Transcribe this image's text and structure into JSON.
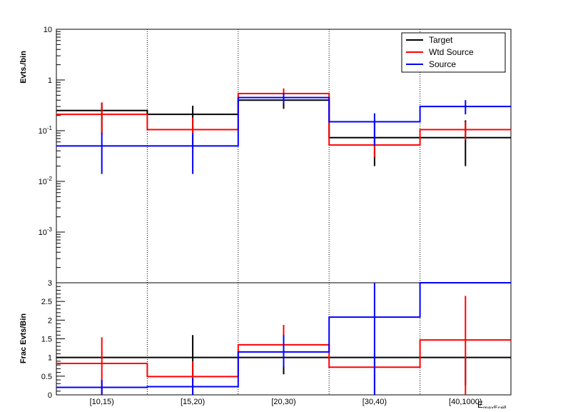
{
  "chart_data": [
    {
      "type": "line",
      "panel": "top",
      "ylabel": "Evts./bin",
      "yscale": "log",
      "ylim": [
        0.0001,
        10
      ],
      "y_ticks": [
        {
          "value": 10,
          "label": "10"
        },
        {
          "value": 1,
          "label": "1"
        },
        {
          "value": 0.1,
          "label": "10",
          "exp": "-1"
        },
        {
          "value": 0.01,
          "label": "10",
          "exp": "-2"
        },
        {
          "value": 0.001,
          "label": "10",
          "exp": "-3"
        }
      ],
      "categories": [
        "[10,15)",
        "[15,20)",
        "[20,30)",
        "[30,40)",
        "[40,1000)"
      ],
      "legend": {
        "position": "top-right"
      },
      "series": [
        {
          "name": "Target",
          "color": "#000000",
          "values": [
            0.25,
            0.21,
            0.4,
            0.073,
            0.073
          ],
          "errors": [
            [
              0.085,
              0.36
            ],
            [
              0.09,
              0.31
            ],
            [
              0.27,
              0.55
            ],
            [
              0.02,
              0.16
            ],
            [
              0.02,
              0.16
            ]
          ]
        },
        {
          "name": "Wtd Source",
          "color": "#ff0000",
          "values": [
            0.21,
            0.105,
            0.54,
            0.052,
            0.105
          ],
          "errors": [
            [
              0.085,
              0.36
            ],
            [
              0.045,
              0.18
            ],
            [
              0.42,
              0.68
            ],
            [
              0.03,
              0.08
            ],
            [
              0.065,
              0.15
            ]
          ]
        },
        {
          "name": "Source",
          "color": "#0000ff",
          "values": [
            0.05,
            0.05,
            0.45,
            0.15,
            0.3
          ],
          "errors": [
            [
              0.014,
              0.09
            ],
            [
              0.014,
              0.09
            ],
            [
              0.35,
              0.55
            ],
            [
              0.05,
              0.22
            ],
            [
              0.21,
              0.4
            ]
          ]
        }
      ]
    },
    {
      "type": "line",
      "panel": "bottom",
      "ylabel": "Frac Evts/Bin",
      "xlabel": "E",
      "xlabel_sub": "maxEcell",
      "ylim": [
        0,
        3
      ],
      "y_ticks": [
        {
          "value": 0,
          "label": "0"
        },
        {
          "value": 0.5,
          "label": "0.5"
        },
        {
          "value": 1,
          "label": "1"
        },
        {
          "value": 1.5,
          "label": "1.5"
        },
        {
          "value": 2,
          "label": "2"
        },
        {
          "value": 2.5,
          "label": "2.5"
        },
        {
          "value": 3,
          "label": "3"
        }
      ],
      "categories": [
        "[10,15)",
        "[15,20)",
        "[20,30)",
        "[30,40)",
        "[40,1000)"
      ],
      "series": [
        {
          "name": "Target",
          "color": "#000000",
          "values": [
            1.0,
            1.0,
            1.0,
            1.0,
            1.0
          ],
          "errors": [
            null,
            [
              0.45,
              1.6
            ],
            [
              0.55,
              1.6
            ],
            null,
            [
              0.25,
              1.0
            ]
          ]
        },
        {
          "name": "Wtd Source",
          "color": "#ff0000",
          "values": [
            0.84,
            0.49,
            1.34,
            0.74,
            1.47
          ],
          "errors": [
            [
              0.0,
              1.54
            ],
            [
              0.0,
              0.9
            ],
            [
              0.95,
              1.87
            ],
            [
              0.0,
              1.1
            ],
            [
              0.0,
              2.65
            ]
          ]
        },
        {
          "name": "Source",
          "color": "#0000ff",
          "values": [
            0.2,
            0.22,
            1.15,
            2.08,
            3.0
          ],
          "errors": [
            [
              0.0,
              0.4
            ],
            [
              0.0,
              0.45
            ],
            [
              0.75,
              1.6
            ],
            [
              0.0,
              3.0
            ],
            null
          ]
        }
      ]
    }
  ]
}
